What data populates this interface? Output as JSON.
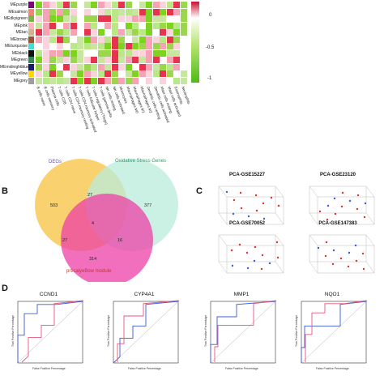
{
  "heatmap": {
    "rows": [
      "MEpurple",
      "MEsalmon",
      "MEdkyigreen",
      "MEpink",
      "MEtan",
      "MEbrown",
      "MEturquoise",
      "MEblack",
      "MEgreen",
      "MEmidnightblue",
      "MEyellow",
      "MEgrey"
    ],
    "row_colors": [
      "#800080",
      "#fa8072",
      "#7cb342",
      "#ffb6c1",
      "#d2b48c",
      "#a0522d",
      "#40e0d0",
      "#111111",
      "#2e8b57",
      "#191970",
      "#ffd700",
      "#9e9e9e"
    ],
    "columns": [
      "B cells naive",
      "B cells memory",
      "Plasma cells",
      "T cells CD8",
      "T cells CD4 naive",
      "T cells CD4 memory resting",
      "T cells CD4 memory activated",
      "T cells follicular helper",
      "T cells regulatory (Tregs)",
      "T cells gamma delta",
      "NK cells resting",
      "NK cells activated",
      "Monocytes",
      "Macrophages M0",
      "Macrophages M1",
      "Macrophages M2",
      "Dendritic cells resting",
      "Dendritic cells activated",
      "Mast cells resting",
      "Mast cells activated",
      "Eosinophils",
      "Neutrophils"
    ],
    "scale_labels": [
      "0",
      "-0.5",
      "-1"
    ]
  },
  "venn": {
    "sets": [
      "DEGs",
      "Oxidative Stress Genes",
      "prticalyeBow module"
    ],
    "counts": [
      "503",
      "27",
      "377",
      "4",
      "27",
      "16",
      "314"
    ]
  },
  "pca": {
    "titles": [
      "PCA-GSE15227",
      "PCA-GSE23120",
      "PCA-GSE70052",
      "PCA-GSE147383"
    ]
  },
  "roc": {
    "titles": [
      "CCND1",
      "CYP4A1",
      "MMP1",
      "NQO1"
    ],
    "xlabel": "False Positive Percentage",
    "ylabel": "True Positive Percentage"
  },
  "panels": {
    "b": "B",
    "c": "C",
    "d": "D"
  }
}
